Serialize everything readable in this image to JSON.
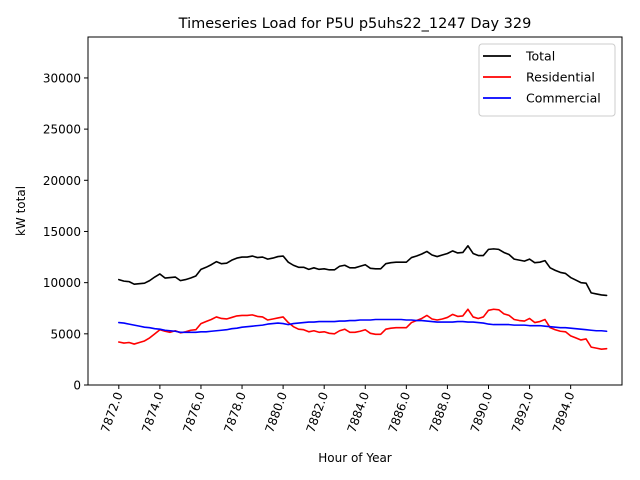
{
  "chart_data": {
    "type": "line",
    "title": "Timeseries Load for P5U p5uhs22_1247  Day 329",
    "xlabel": "Hour of Year",
    "ylabel": "kW total",
    "xlim": [
      7870.5,
      7896.5
    ],
    "ylim": [
      0,
      34000
    ],
    "x_ticks": [
      7872,
      7874,
      7876,
      7878,
      7880,
      7882,
      7884,
      7886,
      7888,
      7890,
      7892,
      7894
    ],
    "x_tick_labels": [
      "7872.0",
      "7874.0",
      "7876.0",
      "7878.0",
      "7880.0",
      "7882.0",
      "7884.0",
      "7886.0",
      "7888.0",
      "7890.0",
      "7892.0",
      "7894.0"
    ],
    "y_ticks": [
      0,
      5000,
      10000,
      15000,
      20000,
      25000,
      30000
    ],
    "y_tick_labels": [
      "0",
      "5000",
      "10000",
      "15000",
      "20000",
      "25000",
      "30000"
    ],
    "legend_position": "top-right",
    "x": [
      7872.0,
      7872.25,
      7872.5,
      7872.75,
      7873.0,
      7873.25,
      7873.5,
      7873.75,
      7874.0,
      7874.25,
      7874.5,
      7874.75,
      7875.0,
      7875.25,
      7875.5,
      7875.75,
      7876.0,
      7876.25,
      7876.5,
      7876.75,
      7877.0,
      7877.25,
      7877.5,
      7877.75,
      7878.0,
      7878.25,
      7878.5,
      7878.75,
      7879.0,
      7879.25,
      7879.5,
      7879.75,
      7880.0,
      7880.25,
      7880.5,
      7880.75,
      7881.0,
      7881.25,
      7881.5,
      7881.75,
      7882.0,
      7882.25,
      7882.5,
      7882.75,
      7883.0,
      7883.25,
      7883.5,
      7883.75,
      7884.0,
      7884.25,
      7884.5,
      7884.75,
      7885.0,
      7885.25,
      7885.5,
      7885.75,
      7886.0,
      7886.25,
      7886.5,
      7886.75,
      7887.0,
      7887.25,
      7887.5,
      7887.75,
      7888.0,
      7888.25,
      7888.5,
      7888.75,
      7889.0,
      7889.25,
      7889.5,
      7889.75,
      7890.0,
      7890.25,
      7890.5,
      7890.75,
      7891.0,
      7891.25,
      7891.5,
      7891.75,
      7892.0,
      7892.25,
      7892.5,
      7892.75,
      7893.0,
      7893.25,
      7893.5,
      7893.75,
      7894.0,
      7894.25,
      7894.5,
      7894.75,
      7895.0,
      7895.25,
      7895.5,
      7895.75
    ],
    "series": [
      {
        "name": "Total",
        "color": "#000000",
        "values": [
          10300,
          10150,
          10100,
          9850,
          9900,
          9950,
          10200,
          10550,
          10850,
          10450,
          10500,
          10550,
          10200,
          10300,
          10450,
          10650,
          11300,
          11500,
          11750,
          12050,
          11850,
          11900,
          12200,
          12400,
          12500,
          12500,
          12600,
          12450,
          12500,
          12300,
          12400,
          12550,
          12600,
          12000,
          11700,
          11500,
          11500,
          11300,
          11450,
          11300,
          11350,
          11250,
          11250,
          11600,
          11700,
          11450,
          11450,
          11600,
          11750,
          11400,
          11350,
          11350,
          11850,
          11950,
          12000,
          12000,
          12000,
          12450,
          12600,
          12800,
          13050,
          12700,
          12550,
          12700,
          12850,
          13100,
          12900,
          12950,
          13600,
          12850,
          12650,
          12650,
          13250,
          13300,
          13250,
          12950,
          12750,
          12300,
          12200,
          12100,
          12300,
          11950,
          12000,
          12150,
          11450,
          11200,
          11000,
          10900,
          10500,
          10250,
          10000,
          9950,
          9000,
          8900,
          8800,
          8750
        ]
      },
      {
        "name": "Residential",
        "color": "#ff0000",
        "values": [
          4200,
          4100,
          4150,
          4000,
          4150,
          4300,
          4600,
          5000,
          5400,
          5250,
          5150,
          5300,
          5100,
          5200,
          5350,
          5400,
          6000,
          6200,
          6400,
          6650,
          6500,
          6450,
          6600,
          6750,
          6800,
          6800,
          6850,
          6700,
          6650,
          6350,
          6450,
          6550,
          6650,
          6100,
          5700,
          5450,
          5400,
          5200,
          5300,
          5150,
          5200,
          5050,
          5000,
          5300,
          5450,
          5150,
          5150,
          5250,
          5400,
          5050,
          4950,
          4950,
          5450,
          5550,
          5600,
          5600,
          5600,
          6100,
          6300,
          6500,
          6800,
          6450,
          6350,
          6450,
          6600,
          6900,
          6700,
          6750,
          7400,
          6650,
          6500,
          6650,
          7300,
          7400,
          7350,
          6950,
          6800,
          6400,
          6300,
          6250,
          6500,
          6100,
          6200,
          6400,
          5600,
          5400,
          5250,
          5200,
          4800,
          4600,
          4400,
          4500,
          3700,
          3600,
          3500,
          3550
        ]
      },
      {
        "name": "Commercial",
        "color": "#0000ff",
        "values": [
          6100,
          6050,
          5950,
          5850,
          5750,
          5650,
          5600,
          5500,
          5450,
          5350,
          5300,
          5250,
          5150,
          5150,
          5150,
          5150,
          5200,
          5200,
          5250,
          5300,
          5350,
          5400,
          5500,
          5550,
          5650,
          5700,
          5750,
          5800,
          5850,
          5950,
          6000,
          6050,
          6000,
          5900,
          6000,
          6050,
          6100,
          6150,
          6150,
          6200,
          6200,
          6200,
          6200,
          6250,
          6250,
          6300,
          6300,
          6350,
          6350,
          6350,
          6400,
          6400,
          6400,
          6400,
          6400,
          6400,
          6350,
          6350,
          6300,
          6300,
          6250,
          6200,
          6150,
          6150,
          6150,
          6150,
          6200,
          6200,
          6150,
          6150,
          6100,
          6050,
          5950,
          5900,
          5900,
          5900,
          5900,
          5850,
          5850,
          5850,
          5800,
          5800,
          5800,
          5750,
          5700,
          5650,
          5600,
          5600,
          5550,
          5500,
          5450,
          5400,
          5350,
          5300,
          5300,
          5250
        ]
      }
    ]
  }
}
